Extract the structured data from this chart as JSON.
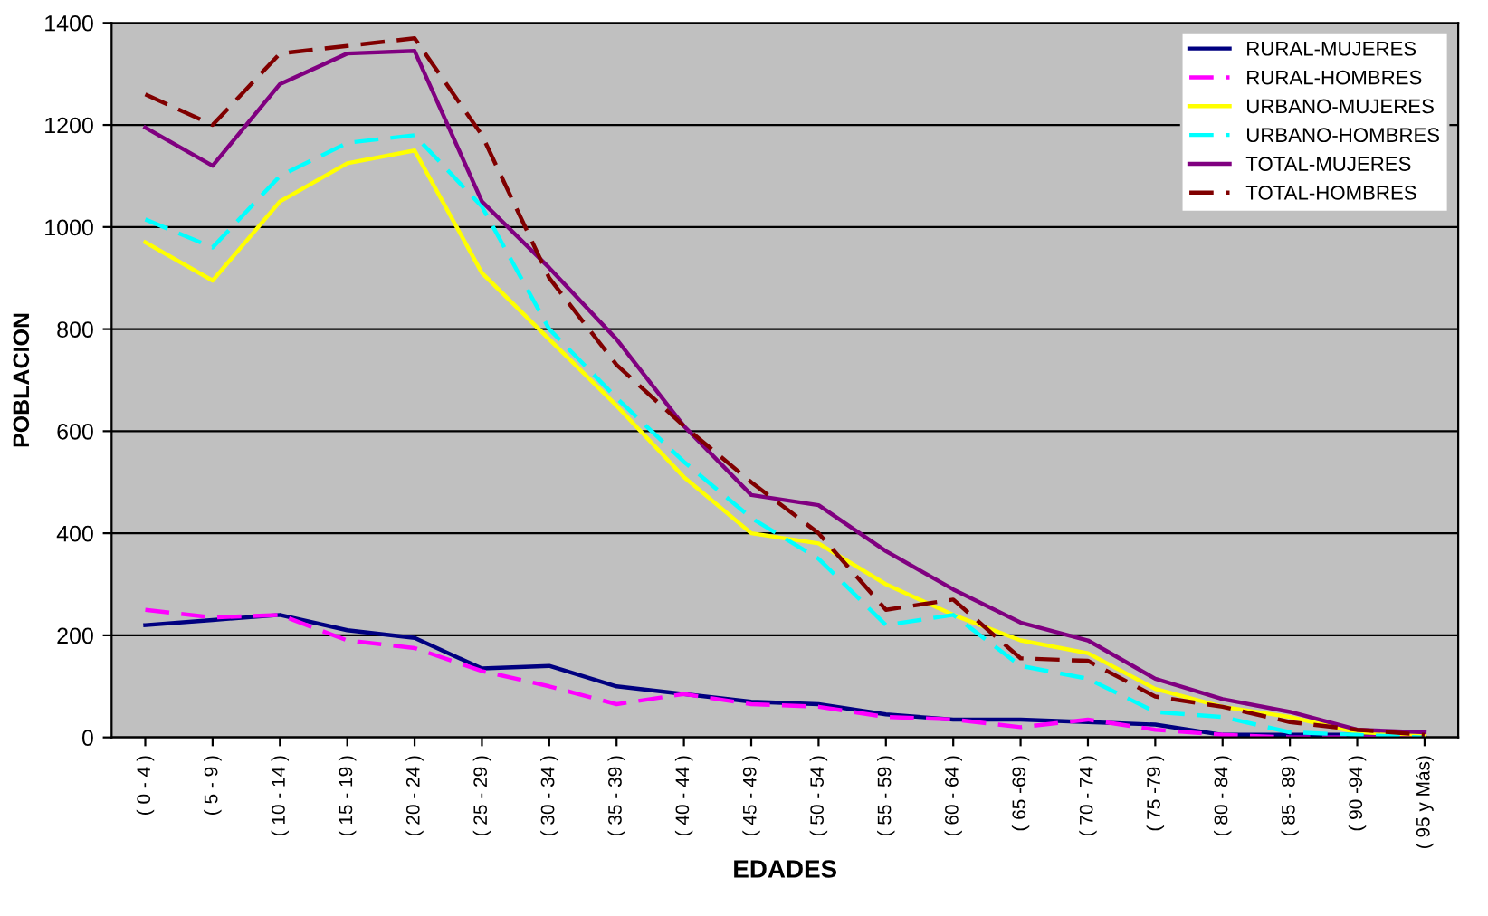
{
  "chart_data": {
    "type": "line",
    "xlabel": "EDADES",
    "ylabel": "POBLACION",
    "categories": [
      "( 0 - 4 )",
      "( 5 - 9 )",
      "( 10 - 14 )",
      "( 15 - 19 )",
      "( 20 - 24 )",
      "( 25 - 29 )",
      "( 30 - 34 )",
      "( 35 - 39 )",
      "( 40 - 44 )",
      "( 45 - 49 )",
      "( 50 - 54 )",
      "( 55 - 59 )",
      "( 60 - 64 )",
      "( 65 -69 )",
      "( 70 - 74 )",
      "( 75 -79 )",
      "( 80 - 84 )",
      "( 85 - 89 )",
      "( 90 -94 )",
      "( 95 y Más)"
    ],
    "series": [
      {
        "name": "RURAL-MUJERES",
        "color": "#000080",
        "line_style": "solid",
        "values": [
          220,
          230,
          240,
          210,
          195,
          135,
          140,
          100,
          85,
          70,
          65,
          45,
          35,
          35,
          30,
          25,
          5,
          5,
          5,
          0
        ]
      },
      {
        "name": "RURAL-HOMBRES",
        "color": "#ff00ff",
        "line_style": "dashed",
        "values": [
          250,
          235,
          240,
          190,
          175,
          130,
          100,
          65,
          85,
          65,
          60,
          40,
          35,
          20,
          35,
          15,
          5,
          0,
          0,
          0
        ]
      },
      {
        "name": "URBANO-MUJERES",
        "color": "#ffff00",
        "line_style": "solid",
        "values": [
          970,
          895,
          1050,
          1125,
          1150,
          910,
          780,
          650,
          510,
          400,
          380,
          300,
          240,
          190,
          165,
          95,
          60,
          40,
          10,
          5
        ]
      },
      {
        "name": "URBANO-HOMBRES",
        "color": "#00ffff",
        "line_style": "dashed",
        "values": [
          1015,
          960,
          1100,
          1165,
          1180,
          1040,
          800,
          665,
          540,
          430,
          350,
          220,
          240,
          140,
          115,
          50,
          40,
          10,
          5,
          0
        ]
      },
      {
        "name": "TOTAL-MUJERES",
        "color": "#800080",
        "line_style": "solid",
        "values": [
          1195,
          1120,
          1280,
          1340,
          1345,
          1050,
          920,
          780,
          610,
          475,
          455,
          365,
          290,
          225,
          190,
          115,
          75,
          50,
          15,
          10
        ]
      },
      {
        "name": "TOTAL-HOMBRES",
        "color": "#800000",
        "line_style": "dashed",
        "values": [
          1260,
          1200,
          1340,
          1355,
          1370,
          1180,
          900,
          730,
          610,
          500,
          400,
          250,
          270,
          155,
          150,
          80,
          60,
          30,
          15,
          5
        ]
      }
    ],
    "ylim": [
      0,
      1400
    ],
    "yticks": [
      0,
      200,
      400,
      600,
      800,
      1000,
      1200,
      1400
    ],
    "grid": "y",
    "legend": "top right",
    "marker": "none"
  }
}
